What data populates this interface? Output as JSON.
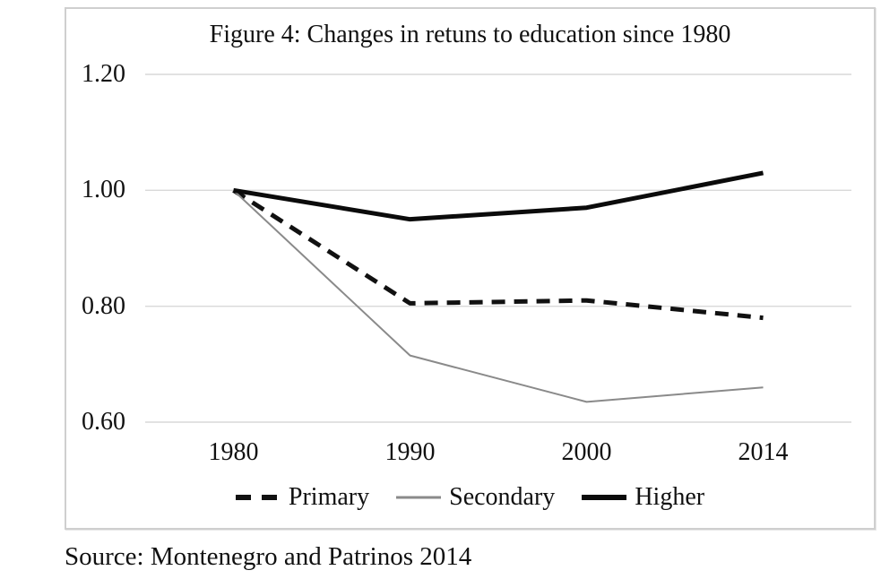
{
  "figure": {
    "title": "Figure 4: Changes in retuns to education since 1980",
    "source": "Source: Montenegro and Patrinos 2014"
  },
  "chart_data": {
    "type": "line",
    "title": "Figure 4: Changes in retuns to education since 1980",
    "categories": [
      "1980",
      "1990",
      "2000",
      "2014"
    ],
    "series": [
      {
        "name": "Primary",
        "values": [
          1.0,
          0.805,
          0.81,
          0.78
        ],
        "style": "dashed",
        "color": "#111111",
        "width": 5
      },
      {
        "name": "Secondary",
        "values": [
          1.0,
          0.715,
          0.635,
          0.66
        ],
        "style": "solid",
        "color": "#8a8a8a",
        "width": 2
      },
      {
        "name": "Higher",
        "values": [
          1.0,
          0.95,
          0.97,
          1.03
        ],
        "style": "solid",
        "color": "#0b0b0b",
        "width": 5
      }
    ],
    "ylim": [
      0.6,
      1.2
    ],
    "yticks": [
      1.2,
      1.0,
      0.8,
      0.6
    ],
    "ytick_labels": [
      "1.20",
      "1.00",
      "0.80",
      "0.60"
    ],
    "xlabel": "",
    "ylabel": "",
    "grid": true,
    "gridline_color": "#d9d9d9",
    "legend_position": "bottom",
    "source": "Source: Montenegro and Patrinos 2014"
  }
}
